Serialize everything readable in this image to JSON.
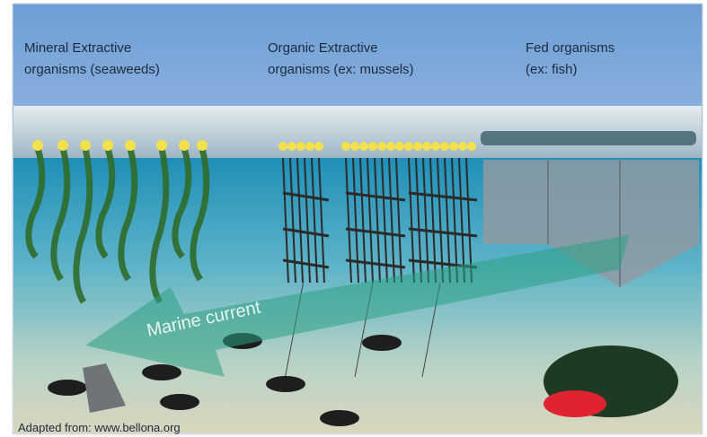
{
  "labels": [
    {
      "lines": [
        "Mineral Extractive",
        "organisms (seaweeds)"
      ]
    },
    {
      "lines": [
        "Organic Extractive",
        "organisms (ex: mussels)"
      ]
    },
    {
      "lines": [
        "Fed organisms",
        "(ex: fish)"
      ]
    }
  ],
  "current": "Marine current",
  "credit": "Adapted from: www.bellona.org"
}
